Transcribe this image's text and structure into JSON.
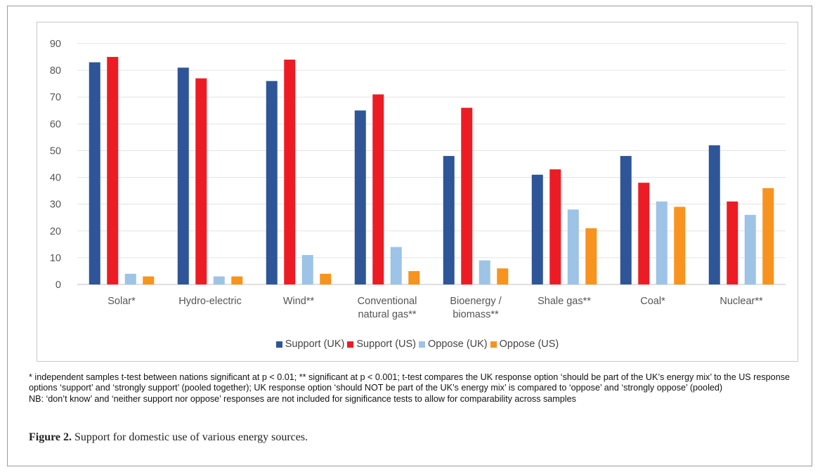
{
  "chart_data": {
    "type": "bar",
    "categories": [
      "Solar*",
      "Hydro-electric",
      "Wind**",
      "Conventional\nnatural gas**",
      "Bioenergy /\nbiomass**",
      "Shale gas**",
      "Coal*",
      "Nuclear**"
    ],
    "series": [
      {
        "name": "Support (UK)",
        "color": "#2E5597",
        "values": [
          83,
          81,
          76,
          65,
          48,
          41,
          48,
          52
        ]
      },
      {
        "name": "Support (US)",
        "color": "#ED1C24",
        "values": [
          85,
          77,
          84,
          71,
          66,
          43,
          38,
          31
        ]
      },
      {
        "name": "Oppose (UK)",
        "color": "#9DC3E6",
        "values": [
          4,
          3,
          11,
          14,
          9,
          28,
          31,
          26
        ]
      },
      {
        "name": "Oppose (US)",
        "color": "#F7931E",
        "values": [
          3,
          3,
          4,
          5,
          6,
          21,
          29,
          36
        ]
      }
    ],
    "ylim": [
      0,
      90
    ],
    "yticks": [
      0,
      10,
      20,
      30,
      40,
      50,
      60,
      70,
      80,
      90
    ],
    "grid": true,
    "legend_position": "bottom",
    "xlabel": "",
    "ylabel": ""
  },
  "footnote": {
    "line1": "* independent samples t-test between nations significant at p < 0.01; ** significant at p < 0.001; t-test compares the UK response option ‘should be part of the UK’s energy mix’ to the US response options ‘support’ and ‘strongly support’ (pooled together); UK response option ‘should NOT be part of the UK’s energy mix’ is compared to ‘oppose’ and ‘strongly oppose’ (pooled)",
    "line2": "NB: ‘don’t know’ and ‘neither support nor oppose’ responses are not included for significance tests to allow for comparability across samples"
  },
  "caption": {
    "label": "Figure 2.",
    "text": "Support for domestic use of various energy sources."
  }
}
